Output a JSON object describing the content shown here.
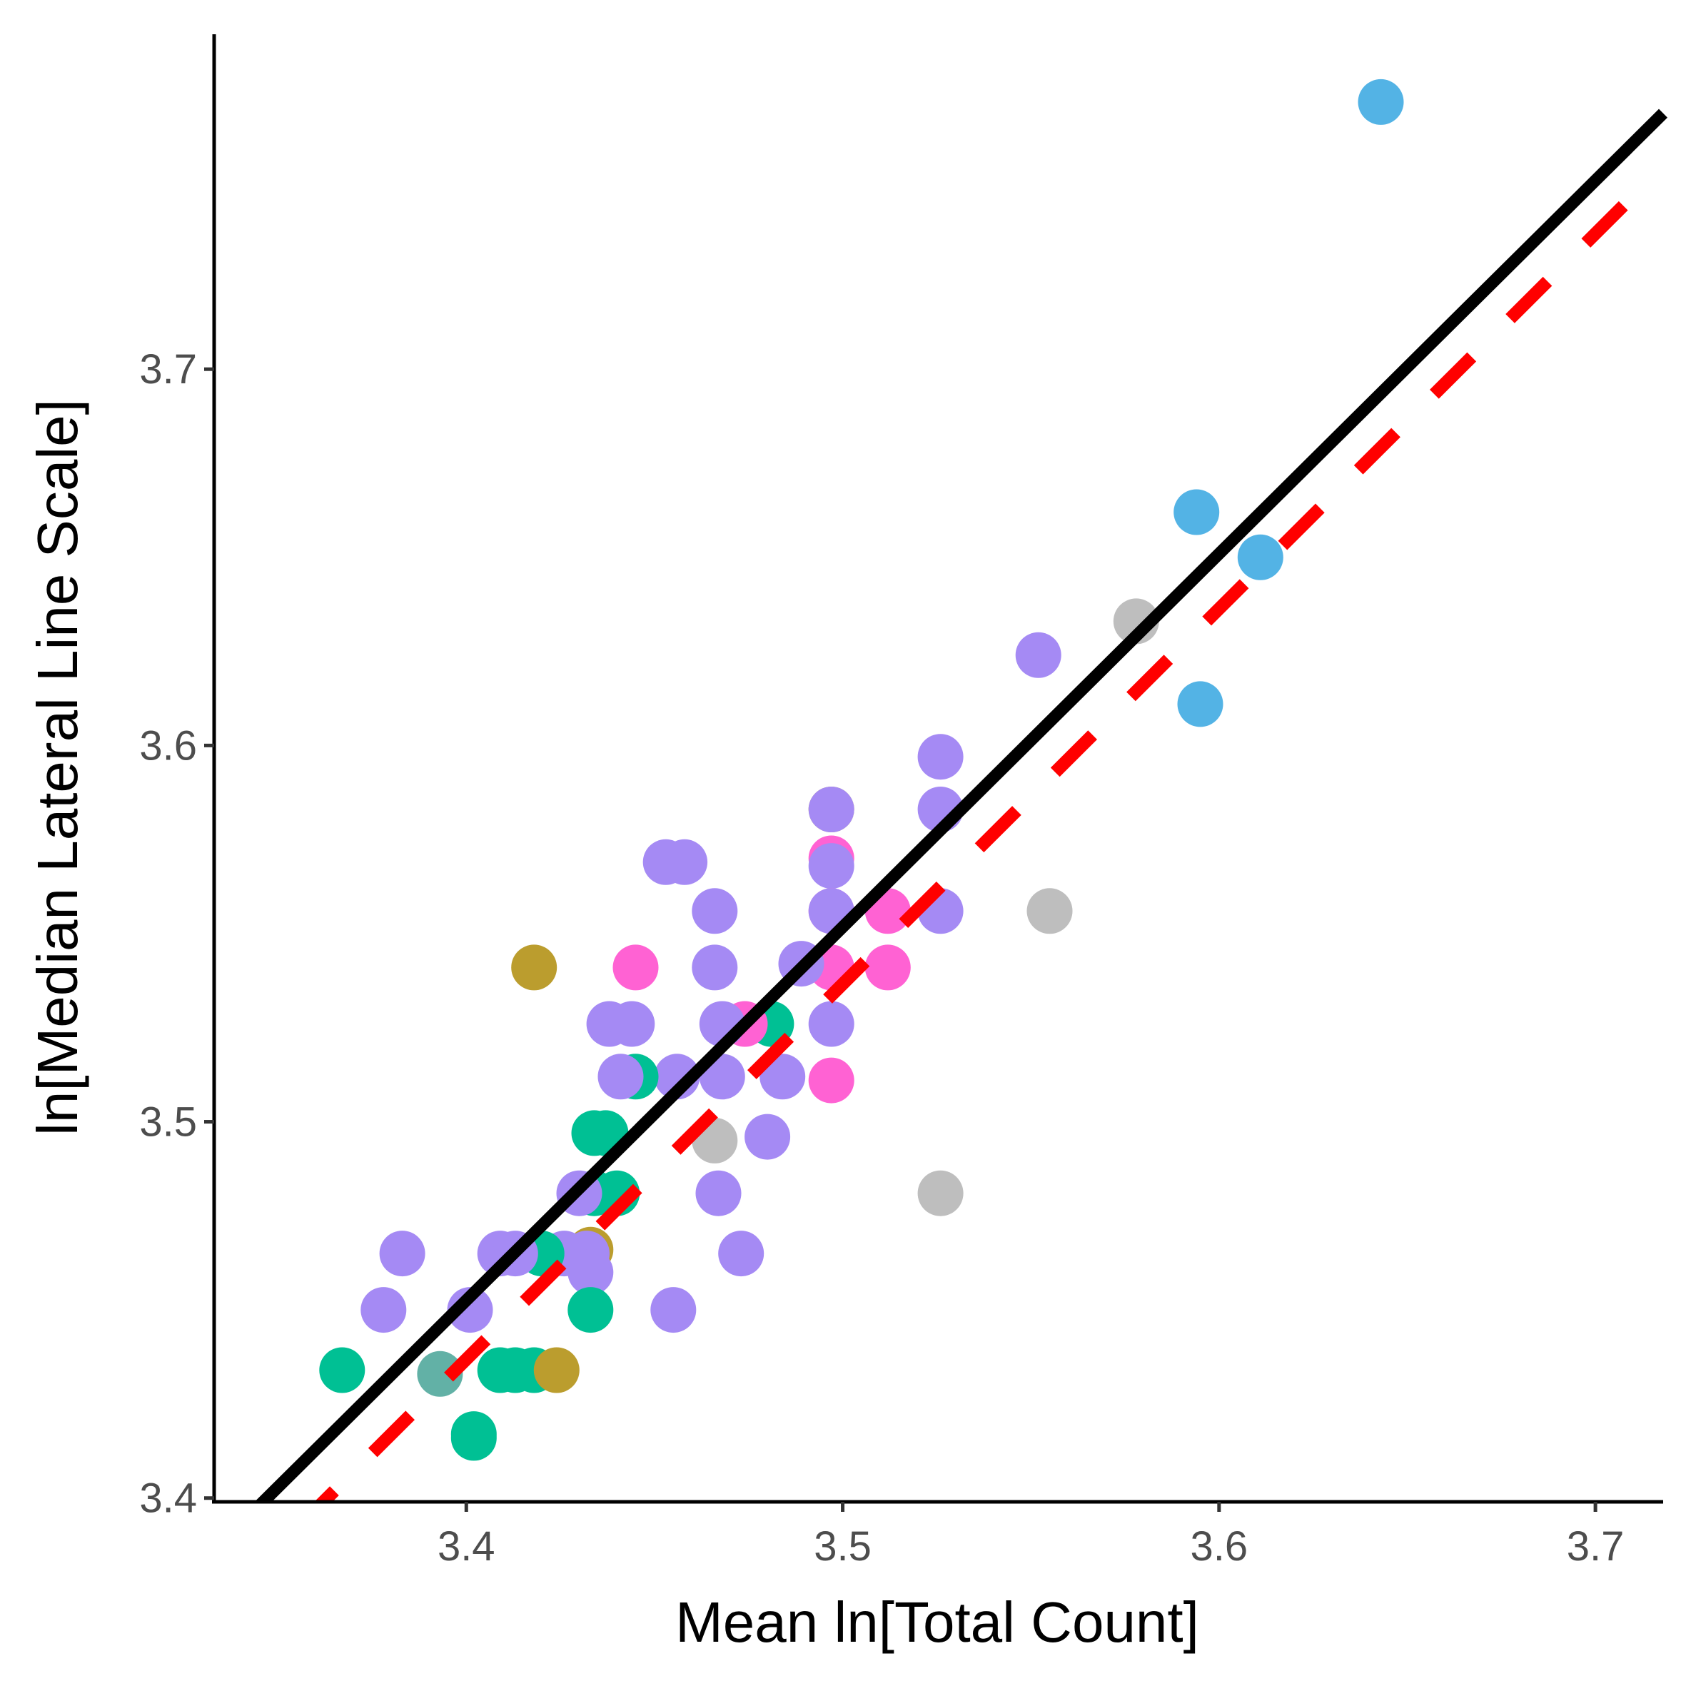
{
  "chart_data": {
    "type": "scatter",
    "title": "",
    "xlabel": "Mean ln[Total Count]",
    "ylabel": "ln[Median Lateral Line Scale]",
    "xlim": [
      3.333,
      3.718
    ],
    "ylim": [
      3.399,
      3.789
    ],
    "x_ticks": [
      3.4,
      3.5,
      3.6,
      3.7
    ],
    "x_tick_labels": [
      "3.4",
      "3.5",
      "3.6",
      "3.7"
    ],
    "y_ticks": [
      3.4,
      3.5,
      3.6,
      3.7
    ],
    "y_tick_labels": [
      "3.4",
      "3.5",
      "3.6",
      "3.7"
    ],
    "grid": false,
    "legend": "none",
    "colors": {
      "purple": "#A58AF4",
      "green": "#00C094",
      "gold": "#BB9D2E",
      "pink": "#FF62D3",
      "blue": "#53B3E5",
      "gray": "#BEBEBE",
      "teal": "#62B1A6",
      "solid_line": "#000000",
      "dashed_line": "#FF0000"
    },
    "lines": [
      {
        "style": "solid",
        "color": "#000000",
        "x": [
          3.345,
          3.718
        ],
        "y": [
          3.398,
          3.768
        ]
      },
      {
        "style": "dashed",
        "color": "#FF0000",
        "x": [
          3.355,
          3.712
        ],
        "y": [
          3.392,
          3.748
        ]
      }
    ],
    "points": [
      {
        "x": 3.643,
        "y": 3.771,
        "c": "blue"
      },
      {
        "x": 3.594,
        "y": 3.662,
        "c": "blue"
      },
      {
        "x": 3.611,
        "y": 3.65,
        "c": "blue"
      },
      {
        "x": 3.595,
        "y": 3.611,
        "c": "blue"
      },
      {
        "x": 3.578,
        "y": 3.633,
        "c": "gray"
      },
      {
        "x": 3.555,
        "y": 3.556,
        "c": "gray"
      },
      {
        "x": 3.526,
        "y": 3.481,
        "c": "gray"
      },
      {
        "x": 3.466,
        "y": 3.495,
        "c": "gray"
      },
      {
        "x": 3.552,
        "y": 3.624,
        "c": "purple"
      },
      {
        "x": 3.526,
        "y": 3.597,
        "c": "purple"
      },
      {
        "x": 3.526,
        "y": 3.583,
        "c": "purple"
      },
      {
        "x": 3.526,
        "y": 3.556,
        "c": "purple"
      },
      {
        "x": 3.497,
        "y": 3.583,
        "c": "gold"
      },
      {
        "x": 3.497,
        "y": 3.583,
        "c": "purple"
      },
      {
        "x": 3.497,
        "y": 3.57,
        "c": "pink"
      },
      {
        "x": 3.497,
        "y": 3.568,
        "c": "purple"
      },
      {
        "x": 3.497,
        "y": 3.556,
        "c": "pink"
      },
      {
        "x": 3.497,
        "y": 3.556,
        "c": "purple"
      },
      {
        "x": 3.512,
        "y": 3.556,
        "c": "pink"
      },
      {
        "x": 3.512,
        "y": 3.541,
        "c": "pink"
      },
      {
        "x": 3.497,
        "y": 3.541,
        "c": "pink"
      },
      {
        "x": 3.489,
        "y": 3.542,
        "c": "purple"
      },
      {
        "x": 3.497,
        "y": 3.526,
        "c": "purple"
      },
      {
        "x": 3.497,
        "y": 3.511,
        "c": "pink"
      },
      {
        "x": 3.481,
        "y": 3.526,
        "c": "green"
      },
      {
        "x": 3.474,
        "y": 3.526,
        "c": "pink"
      },
      {
        "x": 3.468,
        "y": 3.526,
        "c": "purple"
      },
      {
        "x": 3.484,
        "y": 3.512,
        "c": "purple"
      },
      {
        "x": 3.48,
        "y": 3.496,
        "c": "purple"
      },
      {
        "x": 3.453,
        "y": 3.569,
        "c": "purple"
      },
      {
        "x": 3.458,
        "y": 3.569,
        "c": "purple"
      },
      {
        "x": 3.466,
        "y": 3.556,
        "c": "purple"
      },
      {
        "x": 3.466,
        "y": 3.541,
        "c": "purple"
      },
      {
        "x": 3.468,
        "y": 3.512,
        "c": "purple"
      },
      {
        "x": 3.456,
        "y": 3.512,
        "c": "purple"
      },
      {
        "x": 3.467,
        "y": 3.481,
        "c": "purple"
      },
      {
        "x": 3.473,
        "y": 3.465,
        "c": "purple"
      },
      {
        "x": 3.455,
        "y": 3.45,
        "c": "purple"
      },
      {
        "x": 3.445,
        "y": 3.541,
        "c": "pink"
      },
      {
        "x": 3.438,
        "y": 3.526,
        "c": "purple"
      },
      {
        "x": 3.444,
        "y": 3.526,
        "c": "purple"
      },
      {
        "x": 3.445,
        "y": 3.512,
        "c": "green"
      },
      {
        "x": 3.441,
        "y": 3.512,
        "c": "purple"
      },
      {
        "x": 3.434,
        "y": 3.497,
        "c": "green"
      },
      {
        "x": 3.437,
        "y": 3.497,
        "c": "green"
      },
      {
        "x": 3.434,
        "y": 3.481,
        "c": "green"
      },
      {
        "x": 3.44,
        "y": 3.481,
        "c": "green"
      },
      {
        "x": 3.43,
        "y": 3.481,
        "c": "purple"
      },
      {
        "x": 3.433,
        "y": 3.466,
        "c": "gold"
      },
      {
        "x": 3.432,
        "y": 3.465,
        "c": "purple"
      },
      {
        "x": 3.426,
        "y": 3.465,
        "c": "purple"
      },
      {
        "x": 3.433,
        "y": 3.46,
        "c": "purple"
      },
      {
        "x": 3.433,
        "y": 3.45,
        "c": "green"
      },
      {
        "x": 3.418,
        "y": 3.541,
        "c": "gold"
      },
      {
        "x": 3.42,
        "y": 3.465,
        "c": "green"
      },
      {
        "x": 3.409,
        "y": 3.465,
        "c": "purple"
      },
      {
        "x": 3.413,
        "y": 3.465,
        "c": "purple"
      },
      {
        "x": 3.401,
        "y": 3.45,
        "c": "purple"
      },
      {
        "x": 3.383,
        "y": 3.465,
        "c": "purple"
      },
      {
        "x": 3.378,
        "y": 3.45,
        "c": "purple"
      },
      {
        "x": 3.409,
        "y": 3.434,
        "c": "green"
      },
      {
        "x": 3.413,
        "y": 3.434,
        "c": "green"
      },
      {
        "x": 3.418,
        "y": 3.434,
        "c": "green"
      },
      {
        "x": 3.424,
        "y": 3.434,
        "c": "gold"
      },
      {
        "x": 3.393,
        "y": 3.433,
        "c": "teal"
      },
      {
        "x": 3.367,
        "y": 3.434,
        "c": "green"
      },
      {
        "x": 3.402,
        "y": 3.417,
        "c": "green"
      },
      {
        "x": 3.402,
        "y": 3.416,
        "c": "green"
      }
    ]
  }
}
